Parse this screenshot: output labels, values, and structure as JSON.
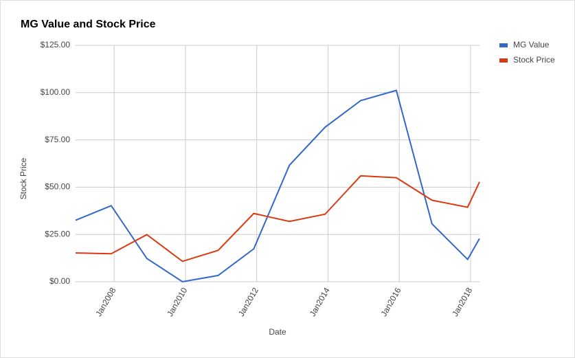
{
  "chart_data": {
    "type": "line",
    "title": "MG Value and Stock Price",
    "x_label": "Date",
    "y_label": "Stock Price",
    "x": [
      "2006-12",
      "2007-12",
      "2008-12",
      "2009-12",
      "2010-12",
      "2011-12",
      "2012-12",
      "2013-12",
      "2014-12",
      "2015-12",
      "2016-12",
      "2017-12",
      "2018-04"
    ],
    "series": [
      {
        "name": "MG Value",
        "color": "#3366cc",
        "values": [
          32.5,
          40.2,
          12.3,
          0,
          3.3,
          17.4,
          61.6,
          81.7,
          95.8,
          101.2,
          30.6,
          11.8,
          22.8
        ]
      },
      {
        "name": "Stock Price",
        "color": "#dc3912",
        "values": [
          15.2,
          14.8,
          24.9,
          10.8,
          16.6,
          36.1,
          31.9,
          35.7,
          56.0,
          55.0,
          43.1,
          39.4,
          52.8
        ]
      }
    ],
    "xlim": [
      "2006-12",
      "2018-04"
    ],
    "xticks": [
      {
        "value": "2008-01",
        "label": "Jan2008"
      },
      {
        "value": "2010-01",
        "label": "Jan2010"
      },
      {
        "value": "2012-01",
        "label": "Jan2012"
      },
      {
        "value": "2014-01",
        "label": "Jan2014"
      },
      {
        "value": "2016-01",
        "label": "Jan2016"
      },
      {
        "value": "2018-01",
        "label": "Jan2018"
      }
    ],
    "ylim": [
      0,
      125
    ],
    "yticks": [
      {
        "value": 0,
        "label": "$0.00"
      },
      {
        "value": 25,
        "label": "$25.00"
      },
      {
        "value": 50,
        "label": "$50.00"
      },
      {
        "value": 75,
        "label": "$75.00"
      },
      {
        "value": 100,
        "label": "$100.00"
      },
      {
        "value": 125,
        "label": "$125.00"
      }
    ],
    "grid": true,
    "legend": "right"
  }
}
